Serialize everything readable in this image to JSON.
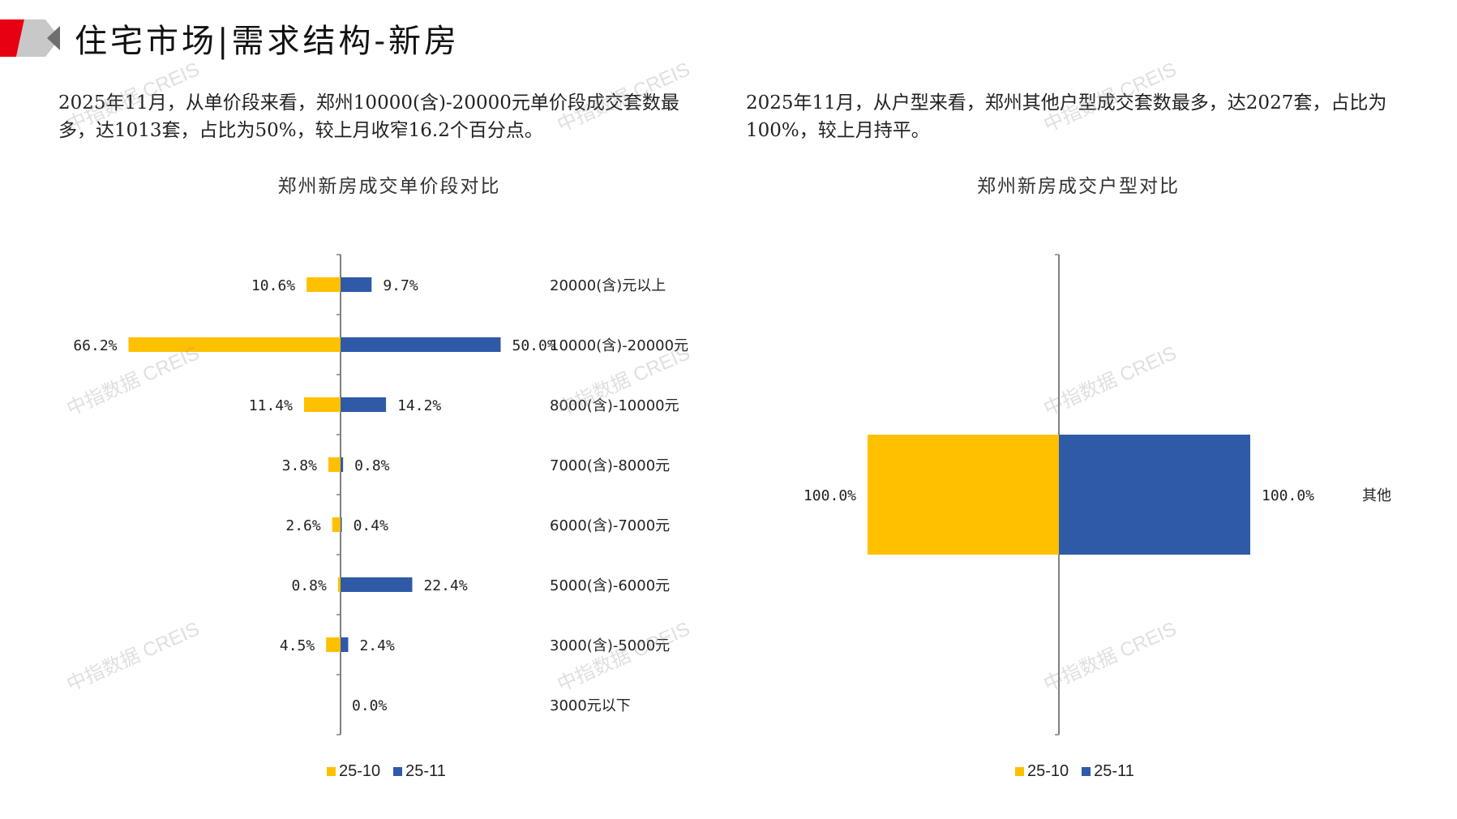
{
  "header": {
    "title": "住宅市场|需求结构-新房"
  },
  "summaries": {
    "left": "2025年11月，从单价段来看，郑州10000(含)-20000元单价段成交套数最多，达1013套，占比为50%，较上月收窄16.2个百分点。",
    "right": "2025年11月，从户型来看，郑州其他户型成交套数最多，达2027套，占比为100%，较上月持平。"
  },
  "colors": {
    "series_prev": "#FFC000",
    "series_curr": "#2F5AA8",
    "axis": "#808080",
    "accent_red": "#E60012"
  },
  "watermark": "中指数据 CREIS",
  "chart_data": [
    {
      "type": "bar",
      "orientation": "butterfly-horizontal",
      "title": "郑州新房成交单价段对比",
      "categories": [
        "20000(含)元以上",
        "10000(含)-20000元",
        "8000(含)-10000元",
        "7000(含)-8000元",
        "6000(含)-7000元",
        "5000(含)-6000元",
        "3000(含)-5000元",
        "3000元以下"
      ],
      "series": [
        {
          "name": "25-10",
          "values": [
            10.6,
            66.2,
            11.4,
            3.8,
            2.6,
            0.8,
            4.5,
            0.0
          ],
          "labels": [
            "10.6%",
            "66.2%",
            "11.4%",
            "3.8%",
            "2.6%",
            "0.8%",
            "4.5%",
            ""
          ]
        },
        {
          "name": "25-11",
          "values": [
            9.7,
            50.0,
            14.2,
            0.8,
            0.4,
            22.4,
            2.4,
            0.0
          ],
          "labels": [
            "9.7%",
            "50.0%",
            "14.2%",
            "0.8%",
            "0.4%",
            "22.4%",
            "2.4%",
            "0.0%"
          ]
        }
      ],
      "unit": "%",
      "legend": "bottom"
    },
    {
      "type": "bar",
      "orientation": "butterfly-horizontal",
      "title": "郑州新房成交户型对比",
      "categories": [
        "其他"
      ],
      "series": [
        {
          "name": "25-10",
          "values": [
            100.0
          ],
          "labels": [
            "100.0%"
          ]
        },
        {
          "name": "25-11",
          "values": [
            100.0
          ],
          "labels": [
            "100.0%"
          ]
        }
      ],
      "unit": "%",
      "legend": "bottom"
    }
  ]
}
